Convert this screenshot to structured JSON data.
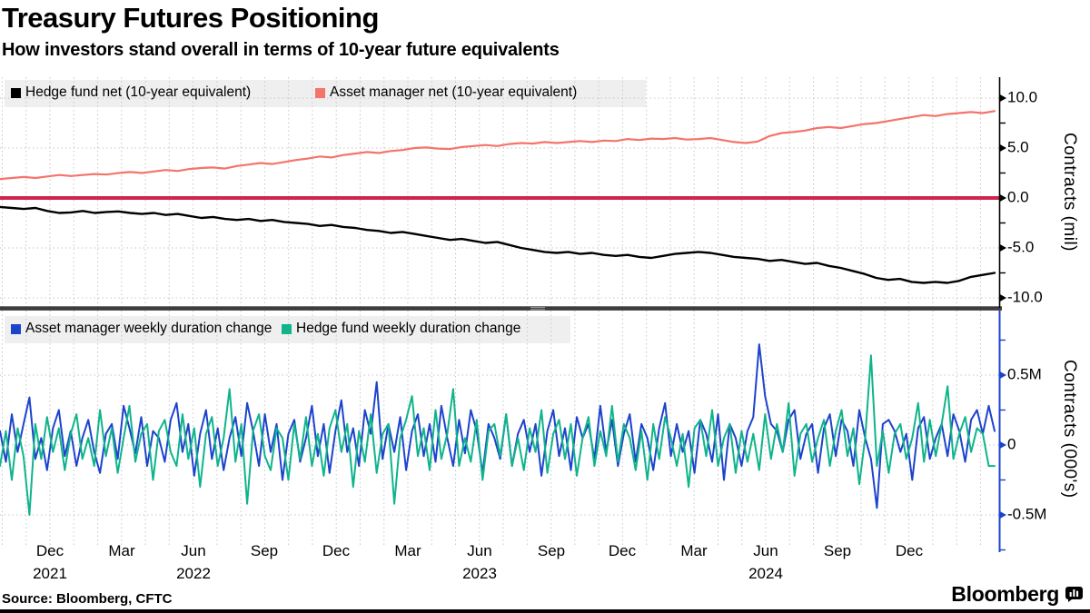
{
  "header": {
    "title": "Treasury Futures Positioning",
    "subtitle": "How investors stand overall in terms of 10-year future equivalents"
  },
  "footer": {
    "source": "Source: Bloomberg, CFTC",
    "brand": "Bloomberg",
    "brand_icon": "bloomberg-logo-icon"
  },
  "colors": {
    "hedge_fund_net": "#000000",
    "asset_manager_net": "#f4746c",
    "zero_baseline": "#d0234f",
    "asset_manager_weekly": "#1d43cd",
    "hedge_fund_weekly": "#0fb48b",
    "grid": "#c7c7c7",
    "panel_divider": "#3d3d3d",
    "legend_band": "#efefef",
    "top_axis": "#000000",
    "bottom_axis": "#1d43cd"
  },
  "xaxis": {
    "month_labels": [
      "Dec",
      "Mar",
      "Jun",
      "Sep",
      "Dec",
      "Mar",
      "Jun",
      "Sep",
      "Dec",
      "Mar",
      "Jun",
      "Sep",
      "Dec"
    ],
    "year_labels": [
      {
        "label": "2021",
        "tick_index": 0
      },
      {
        "label": "2022",
        "tick_index": 2
      },
      {
        "label": "2023",
        "tick_index": 6
      },
      {
        "label": "2024",
        "tick_index": 10
      }
    ]
  },
  "chart_data": [
    {
      "type": "line",
      "panel": "top",
      "ylabel": "Contracts (mil)",
      "ylim": [
        -11.5,
        12.0
      ],
      "grid": true,
      "legend_position": "top-left",
      "yticks": [
        {
          "value": 10,
          "label": "10.0"
        },
        {
          "value": 5,
          "label": "5.0"
        },
        {
          "value": 0,
          "label": "0.0"
        },
        {
          "value": -5,
          "label": "-5.0"
        },
        {
          "value": -10,
          "label": "-10.0"
        }
      ],
      "yminor": [
        7.5,
        2.5,
        -2.5,
        -7.5
      ],
      "baseline": {
        "value": 0,
        "color": "#d0234f",
        "width": 4
      },
      "legend": [
        {
          "label": "Hedge fund net (10-year equivalent)",
          "color": "#000000"
        },
        {
          "label": "Asset manager net (10-year equivalent)",
          "color": "#f4746c"
        }
      ],
      "series": [
        {
          "name": "Hedge fund net (10-year equivalent)",
          "color": "#000000",
          "width": 2.4,
          "values": [
            -0.9,
            -1.0,
            -1.1,
            -1.0,
            -1.3,
            -1.5,
            -1.45,
            -1.3,
            -1.5,
            -1.4,
            -1.35,
            -1.5,
            -1.6,
            -1.5,
            -1.7,
            -1.6,
            -1.8,
            -2.0,
            -1.9,
            -2.1,
            -2.2,
            -2.1,
            -2.3,
            -2.2,
            -2.4,
            -2.5,
            -2.6,
            -2.8,
            -2.7,
            -2.9,
            -3.0,
            -3.2,
            -3.3,
            -3.5,
            -3.4,
            -3.6,
            -3.8,
            -4.0,
            -4.2,
            -4.1,
            -4.3,
            -4.5,
            -4.4,
            -4.7,
            -5.0,
            -5.2,
            -5.4,
            -5.5,
            -5.4,
            -5.6,
            -5.5,
            -5.7,
            -5.8,
            -5.7,
            -5.9,
            -6.0,
            -5.8,
            -5.6,
            -5.5,
            -5.4,
            -5.5,
            -5.7,
            -5.9,
            -6.0,
            -6.1,
            -6.3,
            -6.2,
            -6.4,
            -6.6,
            -6.5,
            -6.8,
            -7.0,
            -7.3,
            -7.6,
            -8.0,
            -8.2,
            -8.1,
            -8.4,
            -8.5,
            -8.4,
            -8.5,
            -8.3,
            -7.9,
            -7.7,
            -7.5
          ]
        },
        {
          "name": "Asset manager net (10-year equivalent)",
          "color": "#f4746c",
          "width": 2.2,
          "values": [
            1.9,
            2.0,
            2.1,
            2.0,
            2.15,
            2.3,
            2.2,
            2.3,
            2.4,
            2.35,
            2.5,
            2.6,
            2.5,
            2.65,
            2.8,
            2.7,
            2.9,
            3.0,
            3.05,
            2.95,
            3.2,
            3.35,
            3.5,
            3.4,
            3.6,
            3.8,
            3.95,
            4.15,
            4.05,
            4.3,
            4.45,
            4.6,
            4.5,
            4.7,
            4.8,
            5.0,
            5.05,
            4.95,
            4.9,
            5.1,
            5.2,
            5.3,
            5.2,
            5.4,
            5.5,
            5.45,
            5.6,
            5.5,
            5.6,
            5.7,
            5.6,
            5.75,
            5.7,
            5.9,
            5.8,
            5.95,
            5.9,
            6.0,
            5.85,
            5.9,
            6.0,
            5.8,
            5.6,
            5.5,
            5.65,
            6.2,
            6.5,
            6.6,
            6.75,
            7.0,
            7.1,
            7.0,
            7.2,
            7.4,
            7.5,
            7.7,
            7.9,
            8.1,
            8.3,
            8.2,
            8.4,
            8.5,
            8.6,
            8.5,
            8.7
          ]
        }
      ]
    },
    {
      "type": "line",
      "panel": "bottom",
      "ylabel": "Contracts (000's)",
      "ylim": [
        -0.95,
        0.95
      ],
      "grid": true,
      "legend_position": "top-left",
      "yticks": [
        {
          "value": 0.5,
          "label": "0.5M"
        },
        {
          "value": 0,
          "label": "0"
        },
        {
          "value": -0.5,
          "label": "-0.5M"
        }
      ],
      "yminor": [
        0.75,
        0.25,
        -0.25,
        -0.75
      ],
      "legend": [
        {
          "label": "Asset manager weekly duration change",
          "color": "#1d43cd"
        },
        {
          "label": "Hedge fund weekly duration change",
          "color": "#0fb48b"
        }
      ],
      "series": [
        {
          "name": "Asset manager weekly duration change",
          "color": "#1d43cd",
          "width": 2,
          "values": [
            0.1,
            -0.12,
            0.22,
            -0.05,
            0.15,
            0.34,
            -0.1,
            0.05,
            -0.18,
            0.12,
            0.25,
            -0.08,
            0.1,
            -0.15,
            0.05,
            0.18,
            -0.05,
            -0.2,
            0.08,
            0.15,
            -0.1,
            0.28,
            0.12,
            -0.06,
            0.2,
            -0.15,
            0.1,
            0.05,
            -0.12,
            0.18,
            0.3,
            -0.05,
            0.15,
            -0.22,
            0.08,
            0.25,
            -0.1,
            0.12,
            -0.18,
            0.05,
            0.2,
            -0.08,
            0.3,
            0.1,
            -0.15,
            0.22,
            -0.05,
            0.15,
            -0.25,
            0.08,
            0.18,
            -0.12,
            0.05,
            0.28,
            -0.08,
            0.15,
            -0.2,
            0.1,
            0.32,
            -0.05,
            0.12,
            -0.15,
            0.25,
            0.08,
            0.45,
            -0.1,
            0.15,
            -0.05,
            0.2,
            -0.18,
            0.1,
            0.22,
            -0.08,
            0.15,
            -0.12,
            0.28,
            0.05,
            -0.15,
            0.18,
            -0.06,
            0.25,
            0.1,
            -0.2,
            0.15,
            0.05,
            -0.1,
            0.22,
            -0.15,
            0.08,
            0.18,
            -0.05,
            0.15,
            -0.22,
            0.1,
            0.25,
            -0.08,
            0.12,
            -0.18,
            0.2,
            0.05,
            0.15,
            -0.1,
            0.28,
            -0.05,
            0.18,
            -0.15,
            0.08,
            0.22,
            -0.12,
            0.15,
            0.05,
            -0.18,
            0.12,
            0.3,
            -0.08,
            0.15,
            -0.05,
            0.1,
            -0.2,
            0.18,
            0.08,
            -0.12,
            0.22,
            -0.25,
            0.15,
            0.05,
            -0.15,
            0.1,
            0.2,
            0.72,
            0.35,
            0.15,
            0.1,
            -0.05,
            0.18,
            0.25,
            -0.1,
            0.08,
            0.15,
            -0.2,
            0.12,
            0.22,
            -0.08,
            0.18,
            0.1,
            -0.15,
            0.25,
            0.05,
            -0.1,
            -0.45,
            0.15,
            0.18,
            0.1,
            -0.05,
            0.08,
            -0.25,
            0.12,
            0.2,
            -0.1,
            0.05,
            0.15,
            -0.08,
            0.22,
            0.1,
            -0.12,
            0.18,
            0.25,
            0.08,
            0.28,
            0.1
          ]
        },
        {
          "name": "Hedge fund weekly duration change",
          "color": "#0fb48b",
          "width": 2,
          "values": [
            -0.15,
            0.1,
            -0.25,
            0.12,
            -0.08,
            -0.5,
            0.15,
            -0.1,
            0.2,
            -0.05,
            0.12,
            -0.18,
            0.08,
            0.22,
            -0.1,
            0.05,
            -0.15,
            0.25,
            -0.08,
            0.12,
            -0.2,
            0.05,
            0.28,
            -0.12,
            0.08,
            0.15,
            -0.25,
            0.1,
            0.18,
            -0.05,
            -0.15,
            0.22,
            -0.1,
            0.12,
            -0.3,
            0.08,
            0.2,
            -0.15,
            0.05,
            0.4,
            -0.12,
            0.15,
            -0.42,
            0.1,
            0.22,
            -0.08,
            -0.18,
            0.12,
            0.05,
            -0.25,
            0.15,
            -0.1,
            0.2,
            -0.15,
            0.08,
            -0.22,
            0.12,
            0.25,
            -0.05,
            0.15,
            -0.3,
            0.1,
            -0.12,
            0.22,
            -0.2,
            0.08,
            0.15,
            -0.42,
            0.05,
            0.18,
            0.35,
            -0.08,
            0.12,
            -0.18,
            0.25,
            -0.1,
            0.08,
            0.4,
            -0.15,
            0.05,
            -0.12,
            0.18,
            -0.25,
            0.1,
            0.15,
            -0.08,
            0.22,
            -0.15,
            0.05,
            -0.18,
            0.12,
            -0.05,
            0.25,
            -0.2,
            0.08,
            0.18,
            -0.1,
            0.15,
            -0.22,
            0.05,
            0.2,
            -0.15,
            0.1,
            -0.08,
            0.28,
            -0.12,
            0.15,
            0.05,
            -0.18,
            0.1,
            -0.25,
            0.15,
            -0.1,
            0.2,
            0.05,
            -0.15,
            0.08,
            -0.3,
            0.12,
            0.18,
            -0.08,
            0.25,
            -0.15,
            0.05,
            0.15,
            -0.2,
            0.1,
            -0.12,
            0.08,
            -0.18,
            0.22,
            -0.1,
            0.15,
            -0.05,
            0.3,
            -0.22,
            0.08,
            0.15,
            -0.12,
            0.05,
            0.18,
            -0.15,
            0.1,
            0.25,
            -0.08,
            0.12,
            -0.28,
            0.05,
            0.64,
            -0.15,
            0.1,
            -0.2,
            0.08,
            0.15,
            -0.1,
            0.05,
            0.3,
            -0.12,
            0.18,
            -0.08,
            0.15,
            0.42,
            -0.1,
            0.08,
            0.2,
            -0.05,
            0.12,
            0.08,
            -0.15,
            -0.15
          ]
        }
      ]
    }
  ]
}
